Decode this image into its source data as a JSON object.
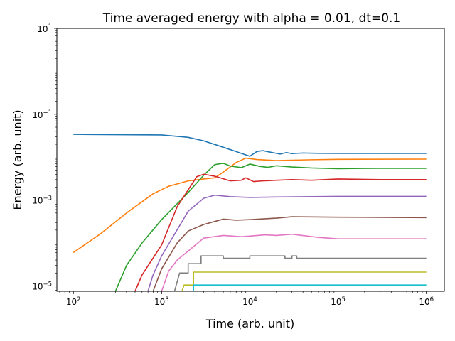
{
  "chart_data": {
    "type": "line",
    "title": "Time averaged energy with alpha = 0.01, dt=0.1",
    "xlabel": "Time (arb. unit)",
    "ylabel": "Energy (arb. unit)",
    "xscale": "log",
    "yscale": "log",
    "xlim": [
      65,
      1600000
    ],
    "ylim": [
      7.5e-06,
      10
    ],
    "grid": false,
    "x_ticks": [
      {
        "value": 100,
        "base": "10",
        "exp": "2"
      },
      {
        "value": 1000,
        "base": "10",
        "exp": "3"
      },
      {
        "value": 10000,
        "base": "10",
        "exp": "4"
      },
      {
        "value": 100000,
        "base": "10",
        "exp": "5"
      },
      {
        "value": 1000000,
        "base": "10",
        "exp": "6"
      }
    ],
    "y_ticks": [
      {
        "value": 1e-05,
        "base": "10",
        "exp": "−5"
      },
      {
        "value": 0.001,
        "base": "10",
        "exp": "−3"
      },
      {
        "value": 0.1,
        "base": "10",
        "exp": "−1"
      },
      {
        "value": 10,
        "base": "10",
        "exp": "1"
      }
    ],
    "series": [
      {
        "color": "#1f77b4",
        "points": [
          [
            100,
            0.034
          ],
          [
            1000,
            0.033
          ],
          [
            2000,
            0.029
          ],
          [
            3000,
            0.024
          ],
          [
            5000,
            0.017
          ],
          [
            7000,
            0.0135
          ],
          [
            10000,
            0.0105
          ],
          [
            12000,
            0.0135
          ],
          [
            14000,
            0.0142
          ],
          [
            18000,
            0.0128
          ],
          [
            22000,
            0.0118
          ],
          [
            26000,
            0.0128
          ],
          [
            30000,
            0.0121
          ],
          [
            40000,
            0.0125
          ],
          [
            60000,
            0.0123
          ],
          [
            100000,
            0.0122
          ],
          [
            1000000,
            0.0122
          ]
        ]
      },
      {
        "color": "#ff7f0e",
        "points": [
          [
            100,
            6e-05
          ],
          [
            200,
            0.00016
          ],
          [
            400,
            0.0005
          ],
          [
            800,
            0.0014
          ],
          [
            1200,
            0.0021
          ],
          [
            2000,
            0.0028
          ],
          [
            3000,
            0.0031
          ],
          [
            4000,
            0.0033
          ],
          [
            5000,
            0.0045
          ],
          [
            7000,
            0.0075
          ],
          [
            9000,
            0.0095
          ],
          [
            12000,
            0.0088
          ],
          [
            20000,
            0.0083
          ],
          [
            30000,
            0.0085
          ],
          [
            50000,
            0.0087
          ],
          [
            100000,
            0.0089
          ],
          [
            1000000,
            0.009
          ]
        ]
      },
      {
        "color": "#2ca02c",
        "points": [
          [
            300,
            7.5e-06
          ],
          [
            400,
            3e-05
          ],
          [
            600,
            0.0001
          ],
          [
            1000,
            0.00035
          ],
          [
            2000,
            0.0015
          ],
          [
            3000,
            0.0038
          ],
          [
            4000,
            0.0067
          ],
          [
            5000,
            0.0072
          ],
          [
            6000,
            0.0062
          ],
          [
            8000,
            0.0057
          ],
          [
            10000,
            0.0069
          ],
          [
            13000,
            0.0061
          ],
          [
            16000,
            0.0058
          ],
          [
            20000,
            0.0063
          ],
          [
            30000,
            0.0059
          ],
          [
            50000,
            0.0056
          ],
          [
            100000,
            0.0054
          ],
          [
            300000,
            0.0055
          ],
          [
            1000000,
            0.0055
          ]
        ]
      },
      {
        "color": "#d62728",
        "points": [
          [
            500,
            7.5e-06
          ],
          [
            600,
            1.8e-05
          ],
          [
            1000,
            9e-05
          ],
          [
            1500,
            0.0007
          ],
          [
            2500,
            0.0035
          ],
          [
            3000,
            0.004
          ],
          [
            4000,
            0.0036
          ],
          [
            6000,
            0.0028
          ],
          [
            8000,
            0.0029
          ],
          [
            9000,
            0.0033
          ],
          [
            11000,
            0.0027
          ],
          [
            14000,
            0.0028
          ],
          [
            20000,
            0.0029
          ],
          [
            30000,
            0.003
          ],
          [
            50000,
            0.0029
          ],
          [
            100000,
            0.0031
          ],
          [
            300000,
            0.003
          ],
          [
            1000000,
            0.003
          ]
        ]
      },
      {
        "color": "#9467bd",
        "points": [
          [
            700,
            7.5e-06
          ],
          [
            800,
            1.8e-05
          ],
          [
            1000,
            5e-05
          ],
          [
            2000,
            0.00055
          ],
          [
            3000,
            0.0011
          ],
          [
            4000,
            0.0013
          ],
          [
            6000,
            0.0012
          ],
          [
            10000,
            0.00115
          ],
          [
            20000,
            0.00118
          ],
          [
            50000,
            0.0012
          ],
          [
            100000,
            0.00122
          ],
          [
            1000000,
            0.00122
          ]
        ]
      },
      {
        "color": "#8c564b",
        "points": [
          [
            800,
            7.5e-06
          ],
          [
            1000,
            2.5e-05
          ],
          [
            1500,
            0.0001
          ],
          [
            2000,
            0.00019
          ],
          [
            3000,
            0.00027
          ],
          [
            5000,
            0.00036
          ],
          [
            7000,
            0.00034
          ],
          [
            10000,
            0.00035
          ],
          [
            20000,
            0.00038
          ],
          [
            30000,
            0.00041
          ],
          [
            100000,
            0.0004
          ],
          [
            1000000,
            0.00039
          ]
        ]
      },
      {
        "color": "#e377c2",
        "points": [
          [
            1000,
            7.5e-06
          ],
          [
            1200,
            2.2e-05
          ],
          [
            1500,
            4e-05
          ],
          [
            2000,
            6.5e-05
          ],
          [
            3000,
            0.00013
          ],
          [
            5000,
            0.00015
          ],
          [
            8000,
            0.00014
          ],
          [
            10000,
            0.000145
          ],
          [
            15000,
            0.000155
          ],
          [
            20000,
            0.00015
          ],
          [
            30000,
            0.00016
          ],
          [
            60000,
            0.000135
          ],
          [
            100000,
            0.000125
          ],
          [
            1000000,
            0.000125
          ]
        ]
      },
      {
        "color": "#7f7f7f",
        "points": [
          [
            1400,
            7.5e-06
          ],
          [
            1600,
            2e-05
          ],
          [
            2000,
            2e-05
          ],
          [
            2000,
            3.3e-05
          ],
          [
            2800,
            3.3e-05
          ],
          [
            2800,
            5e-05
          ],
          [
            5000,
            5e-05
          ],
          [
            5000,
            4.4e-05
          ],
          [
            10000,
            4.4e-05
          ],
          [
            10000,
            5e-05
          ],
          [
            25000,
            5e-05
          ],
          [
            25000,
            4.4e-05
          ],
          [
            30000,
            4.4e-05
          ],
          [
            30000,
            5e-05
          ],
          [
            34000,
            5e-05
          ],
          [
            34000,
            4.4e-05
          ],
          [
            1000000,
            4.4e-05
          ]
        ]
      },
      {
        "color": "#bcbd22",
        "points": [
          [
            1700,
            7.5e-06
          ],
          [
            1800,
            1.05e-05
          ],
          [
            2300,
            1.05e-05
          ],
          [
            2300,
            2.1e-05
          ],
          [
            1000000,
            2.1e-05
          ]
        ]
      },
      {
        "color": "#17becf",
        "points": [
          [
            2300,
            7.5e-06
          ],
          [
            2300,
            1.05e-05
          ],
          [
            1000000,
            1.05e-05
          ]
        ]
      }
    ]
  }
}
